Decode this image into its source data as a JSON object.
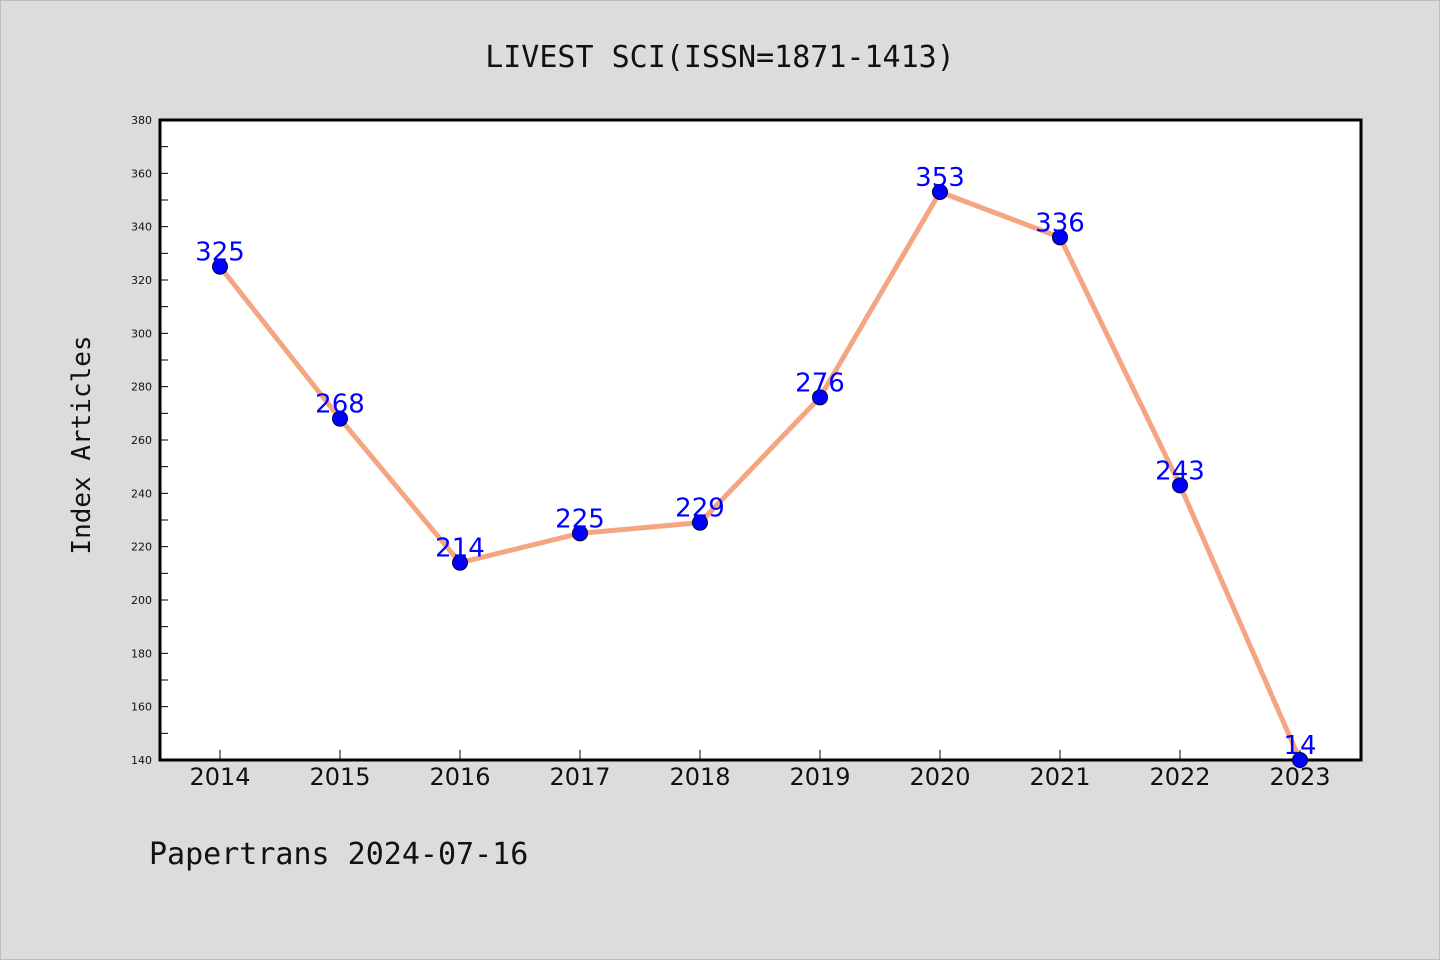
{
  "colors": {
    "background": "#dcdcdc",
    "plot_background": "#ffffff",
    "line": "#f4a582",
    "marker": "#0000ff",
    "data_label": "#0000ff"
  },
  "footer": "Papertrans 2024-07-16",
  "chart_data": {
    "type": "line",
    "title": "LIVEST SCI(ISSN=1871-1413)",
    "xlabel": "",
    "ylabel": "Index Articles",
    "categories": [
      "2014",
      "2015",
      "2016",
      "2017",
      "2018",
      "2019",
      "2020",
      "2021",
      "2022",
      "2023"
    ],
    "series": [
      {
        "values": [
          325,
          268,
          214,
          225,
          229,
          276,
          353,
          336,
          243,
          14
        ],
        "data_labels": [
          "325",
          "268",
          "214",
          "225",
          "229",
          "276",
          "353",
          "336",
          "243",
          "14"
        ]
      }
    ],
    "ylim": [
      140,
      380
    ],
    "yticks": [
      140,
      160,
      180,
      200,
      220,
      240,
      260,
      280,
      300,
      320,
      340,
      360,
      380
    ],
    "grid": false,
    "legend": "none"
  }
}
